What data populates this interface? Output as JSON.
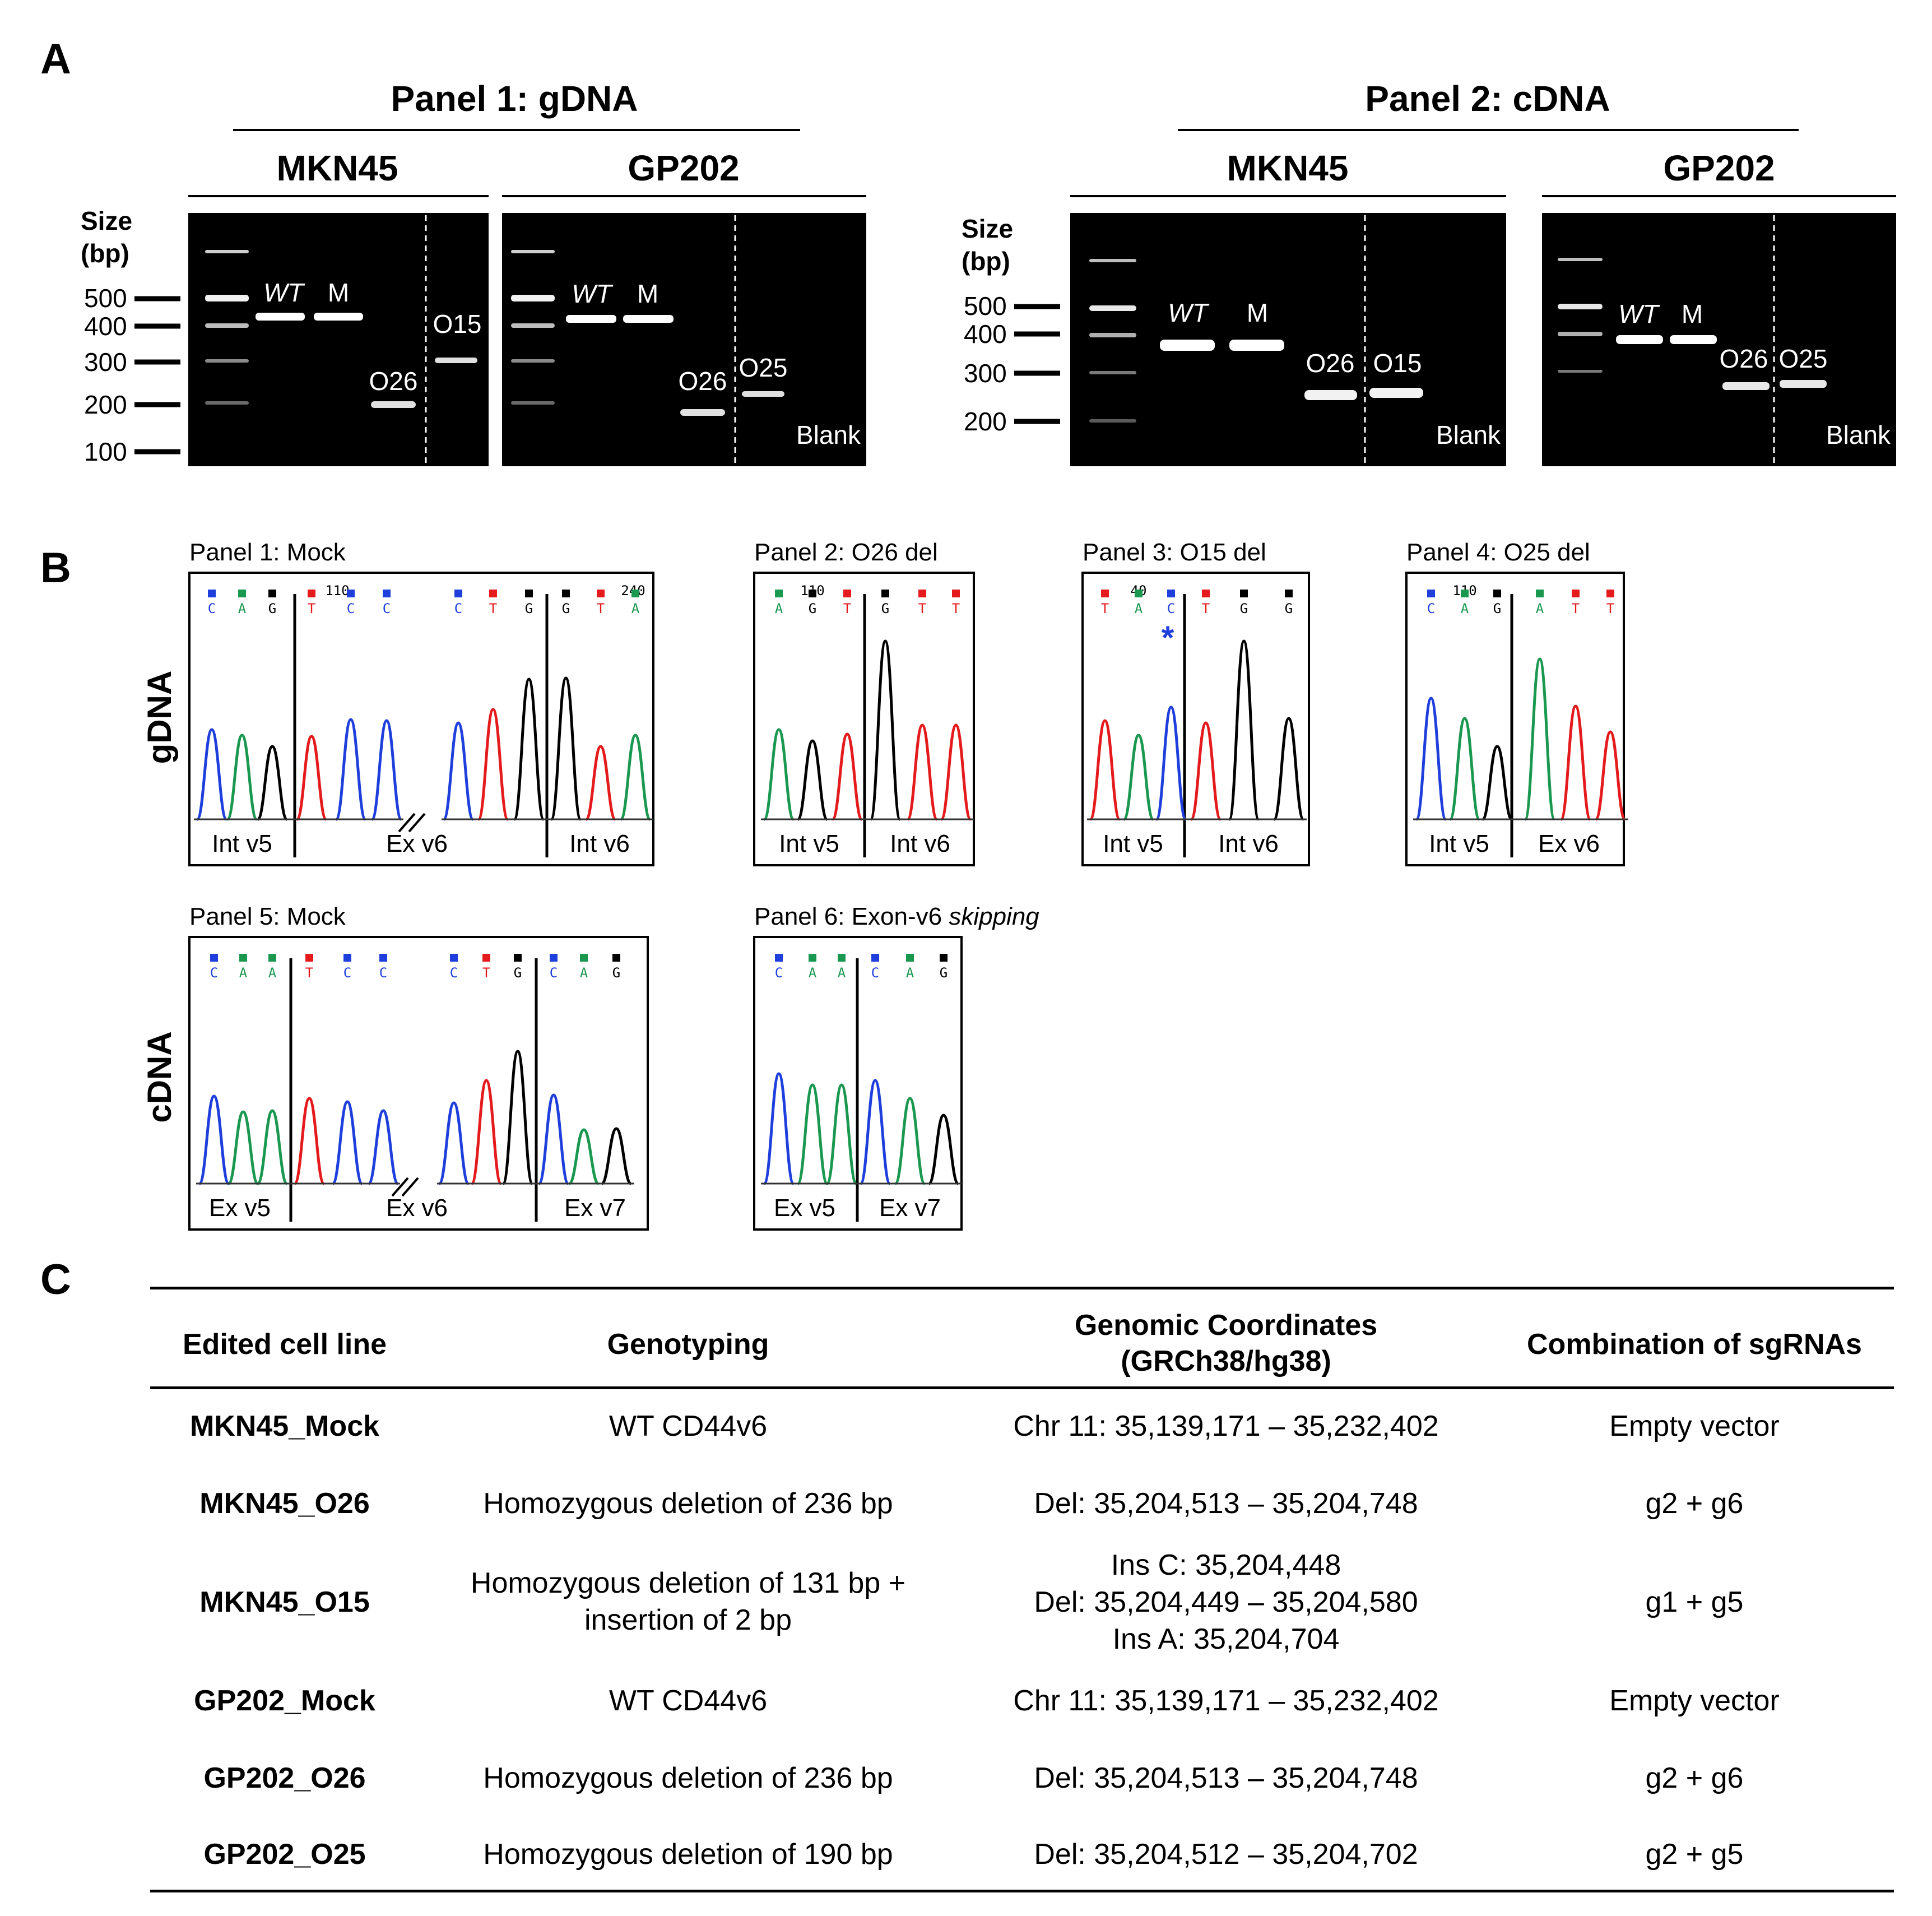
{
  "panel_labels": {
    "a": "A",
    "b": "B",
    "c": "C"
  },
  "figure_a": {
    "panel1": {
      "title": "Panel 1: gDNA",
      "size_label": [
        "Size",
        "(bp)"
      ],
      "ladder": [
        "500",
        "400",
        "300",
        "200",
        "100"
      ],
      "gels": [
        {
          "cell_line": "MKN45",
          "lanes": [
            "WT",
            "M",
            "O26",
            "O15"
          ]
        },
        {
          "cell_line": "GP202",
          "lanes": [
            "WT",
            "M",
            "O26",
            "O25",
            "Blank"
          ]
        }
      ]
    },
    "panel2": {
      "title": "Panel 2: cDNA",
      "size_label": [
        "Size",
        "(bp)"
      ],
      "ladder": [
        "500",
        "400",
        "300",
        "200"
      ],
      "gels": [
        {
          "cell_line": "MKN45",
          "lanes": [
            "WT",
            "M",
            "O26",
            "O15",
            "Blank"
          ]
        },
        {
          "cell_line": "GP202",
          "lanes": [
            "WT",
            "M",
            "O26",
            "O25",
            "Blank"
          ]
        }
      ]
    }
  },
  "figure_b": {
    "row_labels": [
      "gDNA",
      "cDNA"
    ],
    "panels": [
      {
        "title": "Panel 1: Mock",
        "numbers": [
          "110",
          "240"
        ],
        "bases": [
          "C",
          "A",
          "G",
          "T",
          "C",
          "C",
          "C",
          "T",
          "G",
          "G",
          "T",
          "A"
        ],
        "regions": [
          "Int v5",
          "Ex v6",
          "Int v6"
        ]
      },
      {
        "title": "Panel 2: O26 del",
        "numbers": [
          "110"
        ],
        "bases": [
          "A",
          "G",
          "T",
          "G",
          "T",
          "T"
        ],
        "regions": [
          "Int v5",
          "Int v6"
        ]
      },
      {
        "title": "Panel 3: O15 del",
        "numbers": [
          "40"
        ],
        "bases": [
          "T",
          "A",
          "C",
          "T",
          "G",
          "G"
        ],
        "marker": "*",
        "regions": [
          "Int v5",
          "Int v6"
        ]
      },
      {
        "title": "Panel 4: O25 del",
        "numbers": [
          "110"
        ],
        "bases": [
          "C",
          "A",
          "G",
          "A",
          "T",
          "T"
        ],
        "regions": [
          "Int v5",
          "Ex v6"
        ]
      },
      {
        "title": "Panel 5: Mock",
        "bases": [
          "C",
          "A",
          "A",
          "T",
          "C",
          "C",
          "C",
          "T",
          "G",
          "C",
          "A",
          "G"
        ],
        "regions": [
          "Ex v5",
          "Ex v6",
          "Ex v7"
        ]
      },
      {
        "title": "Panel 6: Exon-v6 ",
        "title_italic": "skipping",
        "bases": [
          "C",
          "A",
          "A",
          "C",
          "A",
          "G"
        ],
        "regions": [
          "Ex v5",
          "Ex v7"
        ]
      }
    ]
  },
  "table_c": {
    "headers": [
      "Edited cell line",
      "Genotyping",
      "Genomic Coordinates",
      "(GRCh38/hg38)",
      "Combination of sgRNAs"
    ],
    "rows": [
      {
        "line": "MKN45_Mock",
        "genotype": [
          "WT CD44v6"
        ],
        "coords": [
          "Chr 11: 35,139,171 – 35,232,402"
        ],
        "sgrna": "Empty vector"
      },
      {
        "line": "MKN45_O26",
        "genotype": [
          "Homozygous deletion of 236 bp"
        ],
        "coords": [
          "Del: 35,204,513 – 35,204,748"
        ],
        "sgrna": "g2 + g6"
      },
      {
        "line": "MKN45_O15",
        "genotype": [
          "Homozygous deletion of 131 bp +",
          "insertion of 2 bp"
        ],
        "coords": [
          "Ins C: 35,204,448",
          "Del: 35,204,449 – 35,204,580",
          "Ins A: 35,204,704"
        ],
        "sgrna": "g1 + g5"
      },
      {
        "line": "GP202_Mock",
        "genotype": [
          "WT CD44v6"
        ],
        "coords": [
          "Chr 11: 35,139,171 – 35,232,402"
        ],
        "sgrna": "Empty vector"
      },
      {
        "line": "GP202_O26",
        "genotype": [
          "Homozygous deletion of 236 bp"
        ],
        "coords": [
          "Del: 35,204,513 – 35,204,748"
        ],
        "sgrna": "g2 + g6"
      },
      {
        "line": "GP202_O25",
        "genotype": [
          "Homozygous deletion of 190 bp"
        ],
        "coords": [
          "Del: 35,204,512 – 35,204,702"
        ],
        "sgrna": "g2 + g5"
      }
    ]
  },
  "colors": {
    "A": "#1a9850",
    "C": "#1f3fdc",
    "G": "#000000",
    "T": "#e41a1c",
    "gel": "#000000",
    "band": "#ffffff"
  }
}
